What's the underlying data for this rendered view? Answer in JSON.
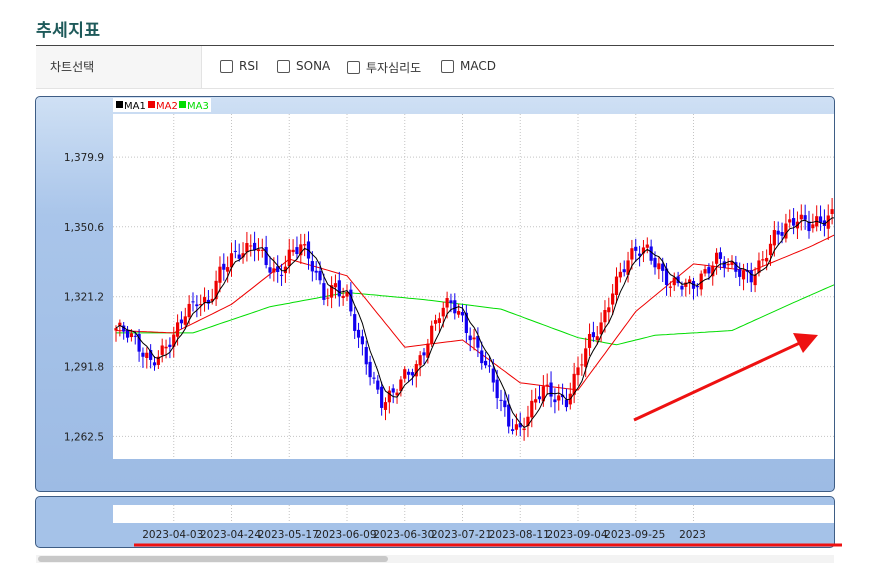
{
  "page": {
    "title": "추세지표"
  },
  "selector": {
    "label": "차트선택",
    "options": [
      {
        "label": "RSI",
        "checked": false
      },
      {
        "label": "SONA",
        "checked": false
      },
      {
        "label": "투자심리도",
        "checked": false
      },
      {
        "label": "MACD",
        "checked": false
      }
    ]
  },
  "colors": {
    "up": "#ee0000",
    "down": "#1100ee",
    "ma1": "#000000",
    "ma2": "#ee0000",
    "ma3": "#00dd00",
    "annotation": "#ee1111"
  },
  "chart_data": {
    "type": "candlestick",
    "legend": [
      "MA1",
      "MA2",
      "MA3"
    ],
    "legend_position": "top-left",
    "grid": true,
    "y_ticks": [
      "1,379.9",
      "1,350.6",
      "1,321.2",
      "1,291.8",
      "1,262.5"
    ],
    "y_tick_values": [
      1379.9,
      1350.6,
      1321.2,
      1291.8,
      1262.5
    ],
    "ylim": [
      1253,
      1398
    ],
    "x_ticks": [
      "2023-04-03",
      "2023-04-24",
      "2023-05-17",
      "2023-06-09",
      "2023-06-30",
      "2023-07-21",
      "2023-08-11",
      "2023-09-04",
      "2023-09-25",
      "2023"
    ],
    "x_tick_index": [
      15,
      30,
      45,
      60,
      75,
      90,
      105,
      120,
      135,
      150
    ],
    "close_anchors": [
      [
        0,
        1308
      ],
      [
        3,
        1305
      ],
      [
        6,
        1300
      ],
      [
        9,
        1295
      ],
      [
        12,
        1298
      ],
      [
        15,
        1303
      ],
      [
        18,
        1315
      ],
      [
        21,
        1321
      ],
      [
        24,
        1318
      ],
      [
        27,
        1330
      ],
      [
        30,
        1338
      ],
      [
        33,
        1342
      ],
      [
        36,
        1343
      ],
      [
        39,
        1334
      ],
      [
        42,
        1330
      ],
      [
        45,
        1340
      ],
      [
        48,
        1343
      ],
      [
        51,
        1333
      ],
      [
        54,
        1322
      ],
      [
        57,
        1327
      ],
      [
        60,
        1320
      ],
      [
        63,
        1302
      ],
      [
        66,
        1290
      ],
      [
        69,
        1278
      ],
      [
        72,
        1280
      ],
      [
        75,
        1287
      ],
      [
        78,
        1292
      ],
      [
        81,
        1304
      ],
      [
        84,
        1314
      ],
      [
        87,
        1318
      ],
      [
        90,
        1312
      ],
      [
        93,
        1303
      ],
      [
        96,
        1292
      ],
      [
        99,
        1280
      ],
      [
        102,
        1269
      ],
      [
        105,
        1266
      ],
      [
        108,
        1274
      ],
      [
        111,
        1282
      ],
      [
        114,
        1280
      ],
      [
        117,
        1278
      ],
      [
        120,
        1290
      ],
      [
        123,
        1302
      ],
      [
        126,
        1310
      ],
      [
        129,
        1325
      ],
      [
        132,
        1333
      ],
      [
        135,
        1340
      ],
      [
        138,
        1342
      ],
      [
        141,
        1334
      ],
      [
        144,
        1325
      ],
      [
        147,
        1326
      ],
      [
        150,
        1327
      ],
      [
        153,
        1332
      ],
      [
        156,
        1336
      ],
      [
        159,
        1334
      ],
      [
        162,
        1333
      ],
      [
        165,
        1330
      ],
      [
        168,
        1335
      ],
      [
        171,
        1346
      ],
      [
        174,
        1352
      ],
      [
        177,
        1355
      ],
      [
        180,
        1350
      ],
      [
        183,
        1352
      ],
      [
        186,
        1357
      ],
      [
        189,
        1360
      ]
    ],
    "ma2_anchors": [
      [
        0,
        1307
      ],
      [
        15,
        1306
      ],
      [
        30,
        1318
      ],
      [
        45,
        1337
      ],
      [
        60,
        1330
      ],
      [
        75,
        1300
      ],
      [
        90,
        1303
      ],
      [
        105,
        1285
      ],
      [
        120,
        1282
      ],
      [
        135,
        1315
      ],
      [
        150,
        1335
      ],
      [
        165,
        1332
      ],
      [
        180,
        1342
      ],
      [
        189,
        1349
      ]
    ],
    "ma3_anchors": [
      [
        0,
        1306
      ],
      [
        20,
        1306
      ],
      [
        40,
        1317
      ],
      [
        60,
        1323
      ],
      [
        80,
        1320
      ],
      [
        100,
        1316
      ],
      [
        120,
        1304
      ],
      [
        130,
        1301
      ],
      [
        140,
        1305
      ],
      [
        160,
        1307
      ],
      [
        175,
        1318
      ],
      [
        189,
        1328
      ]
    ]
  }
}
